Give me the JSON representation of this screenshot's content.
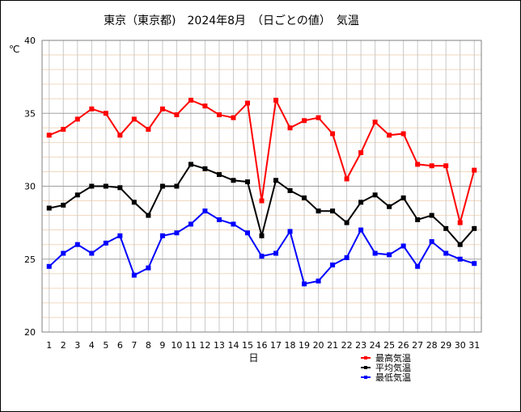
{
  "title": "東京（東京都)　2024年8月　（日ごとの値）　気温",
  "chart_data": {
    "type": "line",
    "title": "東京（東京都)　2024年8月　（日ごとの値）　気温",
    "xlabel": "日",
    "ylabel": "℃",
    "ylim": [
      20,
      40
    ],
    "yticks": [
      20,
      25,
      30,
      35,
      40
    ],
    "grid": true,
    "legend_position": "bottom-right",
    "x": [
      1,
      2,
      3,
      4,
      5,
      6,
      7,
      8,
      9,
      10,
      11,
      12,
      13,
      14,
      15,
      16,
      17,
      18,
      19,
      20,
      21,
      22,
      23,
      24,
      25,
      26,
      27,
      28,
      29,
      30,
      31
    ],
    "series": [
      {
        "name": "最高気温",
        "color": "#ff0000",
        "marker_color": "#ff0000",
        "values": [
          33.5,
          33.9,
          34.6,
          35.3,
          35.0,
          33.5,
          34.6,
          33.9,
          35.3,
          34.9,
          35.9,
          35.5,
          34.9,
          34.7,
          35.7,
          29.0,
          35.9,
          34.0,
          34.5,
          34.7,
          33.6,
          30.5,
          32.3,
          34.4,
          33.5,
          33.6,
          31.5,
          31.4,
          31.4,
          27.5,
          31.1
        ]
      },
      {
        "name": "平均気温",
        "color": "#000000",
        "marker_color": "#000000",
        "values": [
          28.5,
          28.7,
          29.4,
          30.0,
          30.0,
          29.9,
          28.9,
          28.0,
          30.0,
          30.0,
          31.5,
          31.2,
          30.8,
          30.4,
          30.3,
          26.6,
          30.4,
          29.7,
          29.2,
          28.3,
          28.3,
          27.5,
          28.9,
          29.4,
          28.6,
          29.2,
          27.7,
          28.0,
          27.1,
          26.0,
          27.1
        ]
      },
      {
        "name": "最低気温",
        "color": "#0000ff",
        "marker_color": "#0000ff",
        "values": [
          24.5,
          25.4,
          26.0,
          25.4,
          26.1,
          26.6,
          23.9,
          24.4,
          26.6,
          26.8,
          27.4,
          28.3,
          27.7,
          27.4,
          26.8,
          25.2,
          25.4,
          26.9,
          23.3,
          23.5,
          24.6,
          25.1,
          27.0,
          25.4,
          25.3,
          25.9,
          24.5,
          26.2,
          25.4,
          25.0,
          24.7
        ]
      }
    ]
  }
}
